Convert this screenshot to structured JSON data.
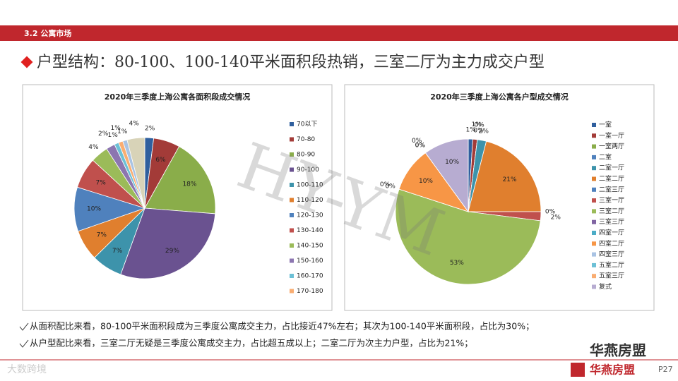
{
  "section": "3.2  公寓市场",
  "headline": "户型结构：80-100、100-140平米面积段热销，三室二厅为主力成交户型",
  "bullets": [
    "从面积配比来看，80-100平米面积段成为三季度公寓成交主力，占比接近47%左右；其次为100-140平米面积段，占比为30%；",
    "从户型配比来看，三室二厅无疑是三季度公寓成交主力，占比超五成以上；二室二厅为次主力户型，占比为21%；"
  ],
  "footer": {
    "watermark": "HY-YM",
    "brand": "华燕房盟",
    "page": "P27",
    "source_mark": "大数跨境"
  },
  "chart_data": [
    {
      "type": "pie",
      "title": "2020年三季度上海公寓各面积段成交情况",
      "categories": [
        "70以下",
        "70-80",
        "80-90",
        "90-100",
        "100-110",
        "110-120",
        "120-130",
        "130-140",
        "140-150",
        "150-160",
        "160-170",
        "170-180",
        null,
        null
      ],
      "values": [
        2,
        6,
        18,
        29,
        7,
        7,
        10,
        7,
        4,
        2,
        1,
        1,
        1,
        4
      ],
      "value_labels": [
        "2%",
        "6%",
        "18%",
        "29%",
        "7%",
        "7%",
        "10%",
        "7%",
        "4%",
        "2%",
        "1%",
        "1%",
        "1%",
        "4%"
      ],
      "colors": [
        "#2f5f9e",
        "#a33b38",
        "#8aad4a",
        "#6a5290",
        "#3d93ab",
        "#e07f2e",
        "#4f81bd",
        "#c0504d",
        "#9bbb59",
        "#8c76b0",
        "#6cc0d6",
        "#f9ad72",
        "#a9c3e3",
        "#d8d3b8"
      ]
    },
    {
      "type": "pie",
      "title": "2020年三季度上海公寓各户型成交情况",
      "categories": [
        "一室",
        "一室一厅",
        "一室两厅",
        "二室",
        "二室一厅",
        "二室二厅",
        "二室三厅",
        "三室一厅",
        "三室二厅",
        "三室三厅",
        "四室一厅",
        "四室二厅",
        "四室三厅",
        "五室二厅",
        "五室三厅",
        "复式"
      ],
      "values": [
        1,
        1,
        0,
        0,
        2,
        21,
        0,
        2,
        53,
        0,
        0,
        10,
        0,
        0,
        0,
        10
      ],
      "value_labels": [
        "1%",
        "1%",
        "0%",
        "0%",
        "2%",
        "21%",
        "0%",
        "2%",
        "53%",
        "0%",
        "0%",
        "10%",
        "0%",
        "0%",
        "0%",
        "10%"
      ],
      "colors": [
        "#2f5f9e",
        "#a33b38",
        "#8aad4a",
        "#4f81bd",
        "#3d93ab",
        "#e07f2e",
        "#4f81bd",
        "#c0504d",
        "#9bbb59",
        "#8064a2",
        "#4bacc6",
        "#f79646",
        "#a9c3e3",
        "#6cc0d6",
        "#f9ad72",
        "#b7acd1"
      ]
    }
  ]
}
